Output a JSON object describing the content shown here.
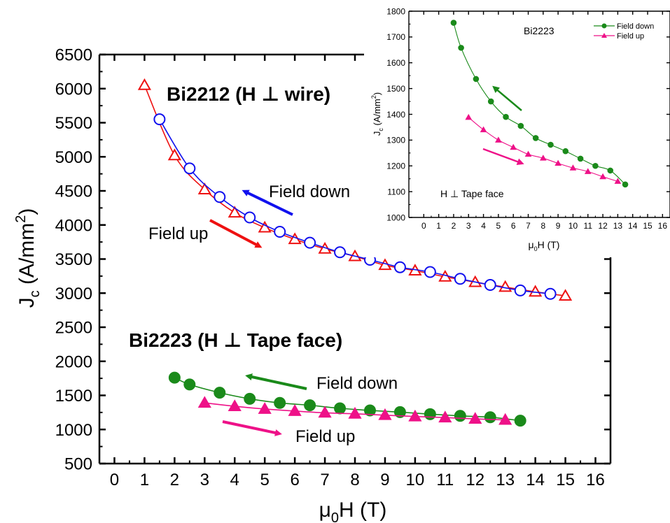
{
  "colors": {
    "bi2212_up": "#ee1111",
    "bi2212_down": "#1111ee",
    "bi2223_down": "#1a8a1a",
    "bi2223_up": "#ee1188",
    "axis": "#000000"
  },
  "chart_data": [
    {
      "type": "scatter",
      "xlim": [
        -0.5,
        16.5
      ],
      "ylim": [
        500,
        6500
      ],
      "xticks": [
        "0",
        "1",
        "2",
        "3",
        "4",
        "5",
        "6",
        "7",
        "8",
        "9",
        "10",
        "11",
        "12",
        "13",
        "14",
        "15",
        "16"
      ],
      "yticks": [
        "500",
        "1000",
        "1500",
        "2000",
        "2500",
        "3000",
        "3500",
        "4000",
        "4500",
        "5000",
        "5500",
        "6000",
        "6500"
      ],
      "xlabel": {
        "prefix": "μ",
        "sub": "0",
        "suffix": "H (T)"
      },
      "ylabel": {
        "prefix": "J",
        "sub": "c",
        "suffix": " (A/mm",
        "sup": "2",
        "end": ")"
      },
      "annotations": {
        "bi2212_title": "Bi2212 (H ⊥ wire)",
        "bi2223_title": "Bi2223 (H ⊥ Tape face)",
        "bi2212_field_down": "Field down",
        "bi2212_field_up": "Field up",
        "bi2223_field_down": "Field down",
        "bi2223_field_up": "Field up"
      },
      "series": [
        {
          "key": "bi2212_up",
          "marker": "triangle-open",
          "x": [
            1,
            2,
            3,
            4,
            5,
            6,
            7,
            8,
            9,
            10,
            11,
            12,
            13,
            14,
            15
          ],
          "y": [
            6050,
            5020,
            4520,
            4180,
            3960,
            3790,
            3650,
            3540,
            3410,
            3330,
            3240,
            3160,
            3090,
            3020,
            2960
          ]
        },
        {
          "key": "bi2212_down",
          "marker": "circle-open",
          "x": [
            1.5,
            2.5,
            3.5,
            4.5,
            5.5,
            6.5,
            7.5,
            8.5,
            9.5,
            10.5,
            11.5,
            12.5,
            13.5,
            14.5
          ],
          "y": [
            5550,
            4830,
            4410,
            4110,
            3900,
            3740,
            3600,
            3490,
            3380,
            3310,
            3210,
            3120,
            3040,
            2990
          ]
        },
        {
          "key": "bi2223_down",
          "marker": "circle-filled",
          "x": [
            2,
            2.5,
            3.5,
            4.5,
            5.5,
            6.5,
            7.5,
            8.5,
            9.5,
            10.5,
            11.5,
            12.5,
            13.5
          ],
          "y": [
            1760,
            1660,
            1540,
            1450,
            1390,
            1355,
            1310,
            1280,
            1255,
            1225,
            1200,
            1180,
            1130
          ]
        },
        {
          "key": "bi2223_up",
          "marker": "triangle-filled",
          "x": [
            3,
            4,
            5,
            6,
            7,
            8,
            9,
            10,
            11,
            12,
            13
          ],
          "y": [
            1390,
            1340,
            1300,
            1270,
            1245,
            1230,
            1210,
            1190,
            1175,
            1155,
            1140
          ]
        }
      ]
    },
    {
      "type": "scatter",
      "xlim": [
        -1,
        16.5
      ],
      "ylim": [
        1000,
        1800
      ],
      "xticks": [
        "0",
        "1",
        "2",
        "3",
        "4",
        "5",
        "6",
        "7",
        "8",
        "9",
        "10",
        "11",
        "12",
        "13",
        "14",
        "15",
        "16"
      ],
      "yticks": [
        "1000",
        "1100",
        "1200",
        "1300",
        "1400",
        "1500",
        "1600",
        "1700",
        "1800"
      ],
      "xlabel": {
        "prefix": "μ",
        "sub": "0",
        "suffix": "H (T)"
      },
      "ylabel": {
        "prefix": "J",
        "sub": "c",
        "suffix": " (A/mm",
        "sup": "2",
        "end": ")"
      },
      "title": "Bi2223",
      "annotation": "H ⊥ Tape face",
      "legend": {
        "position": "top-right",
        "entries": [
          "Field down",
          "Field up"
        ]
      },
      "series": [
        {
          "key": "bi2223_down",
          "name": "Field down",
          "marker": "circle-filled",
          "x": [
            2,
            2.5,
            3.5,
            4.5,
            5.5,
            6.5,
            7.5,
            8.5,
            9.5,
            10.5,
            11.5,
            12.5,
            13.5
          ],
          "y": [
            1755,
            1658,
            1537,
            1450,
            1390,
            1355,
            1308,
            1282,
            1257,
            1228,
            1200,
            1182,
            1128
          ]
        },
        {
          "key": "bi2223_up",
          "name": "Field up",
          "marker": "triangle-filled",
          "x": [
            3,
            4,
            5,
            6,
            7,
            8,
            9,
            10,
            11,
            12,
            13
          ],
          "y": [
            1388,
            1340,
            1300,
            1272,
            1245,
            1230,
            1210,
            1192,
            1178,
            1158,
            1140
          ]
        }
      ]
    }
  ]
}
